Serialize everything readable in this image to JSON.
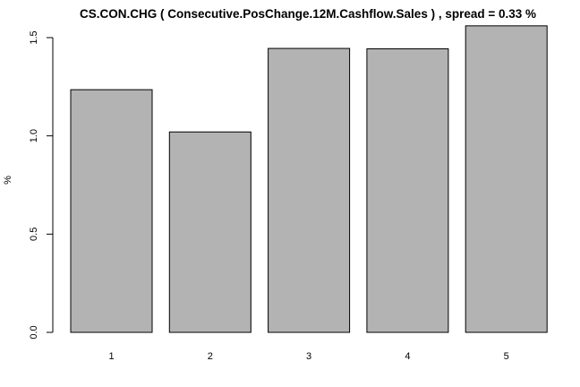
{
  "chart_data": {
    "type": "bar",
    "title": "CS.CON.CHG ( Consecutive.PosChange.12M.Cashflow.Sales ) , spread = 0.33 %",
    "xlabel": "",
    "ylabel": "%",
    "categories": [
      "1",
      "2",
      "3",
      "4",
      "5"
    ],
    "values": [
      1.235,
      1.02,
      1.445,
      1.443,
      1.56
    ],
    "ylim": [
      0,
      1.6
    ],
    "yticks": [
      0.0,
      0.5,
      1.0,
      1.5
    ],
    "ytick_labels": [
      "0.0",
      "0.5",
      "1.0",
      "1.5"
    ],
    "grid": false,
    "legend": "none",
    "colors": {
      "bar_fill": "#b3b3b3",
      "bar_stroke": "#000000"
    }
  }
}
